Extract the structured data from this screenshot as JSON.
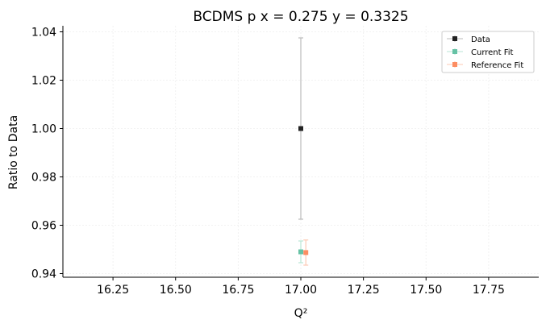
{
  "chart_data": {
    "type": "scatter",
    "title": "BCDMS p x = 0.275 y = 0.3325",
    "xlabel": "Q²",
    "ylabel": "Ratio to Data",
    "xlim": [
      16.05,
      17.95
    ],
    "ylim": [
      0.9385,
      1.0425
    ],
    "xticks": [
      "16.25",
      "16.50",
      "16.75",
      "17.00",
      "17.25",
      "17.50",
      "17.75"
    ],
    "yticks": [
      "0.94",
      "0.96",
      "0.98",
      "1.00",
      "1.02",
      "1.04"
    ],
    "grid": true,
    "legend_position": "top-right",
    "series": [
      {
        "name": "Data",
        "color": "#222222",
        "x": 17.0,
        "y": 1.0,
        "err": 0.0375
      },
      {
        "name": "Current Fit",
        "color": "#66c2a5",
        "x": 17.0,
        "y": 0.949,
        "err": 0.0045
      },
      {
        "name": "Reference Fit",
        "color": "#fc8d62",
        "x": 17.02,
        "y": 0.9487,
        "err": 0.0052
      }
    ]
  }
}
